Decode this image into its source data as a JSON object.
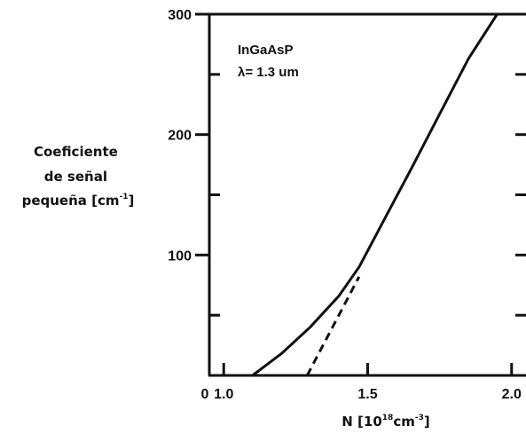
{
  "chart_data": {
    "type": "line",
    "title": "",
    "xlabel": {
      "prefix": "N [10",
      "sup1": "18",
      "mid": "cm",
      "sup2": "-3",
      "suffix": "]"
    },
    "ylabel": {
      "line1": "Coeficiente",
      "line2": "de señal",
      "line3_prefix": "pequeña [cm",
      "line3_sup": "-1",
      "line3_suffix": "]"
    },
    "xlim": [
      0.95,
      2.05
    ],
    "ylim": [
      0,
      300
    ],
    "x_ticks": [
      {
        "value": 1.0,
        "label": "1.0"
      },
      {
        "value": 1.5,
        "label": "1.5"
      },
      {
        "value": 2.0,
        "label": "2.0"
      }
    ],
    "origin_label": "0",
    "y_ticks": [
      {
        "value": 100,
        "label": "100"
      },
      {
        "value": 200,
        "label": "200"
      },
      {
        "value": 300,
        "label": "300"
      }
    ],
    "y_minor_ticks": [
      50,
      150,
      250
    ],
    "grid": false,
    "annotations": [
      {
        "text": "InGaAsP"
      },
      {
        "text": "λ= 1.3 um"
      }
    ],
    "series": [
      {
        "style": "solid",
        "x": [
          1.1,
          1.2,
          1.3,
          1.4,
          1.47,
          1.55,
          1.65,
          1.75,
          1.85,
          1.95,
          1.97
        ],
        "y": [
          0,
          18,
          40,
          66,
          90,
          126,
          171,
          217,
          263,
          300,
          300
        ]
      },
      {
        "style": "dashed",
        "x": [
          1.29,
          1.47
        ],
        "y": [
          0,
          82
        ]
      }
    ]
  }
}
